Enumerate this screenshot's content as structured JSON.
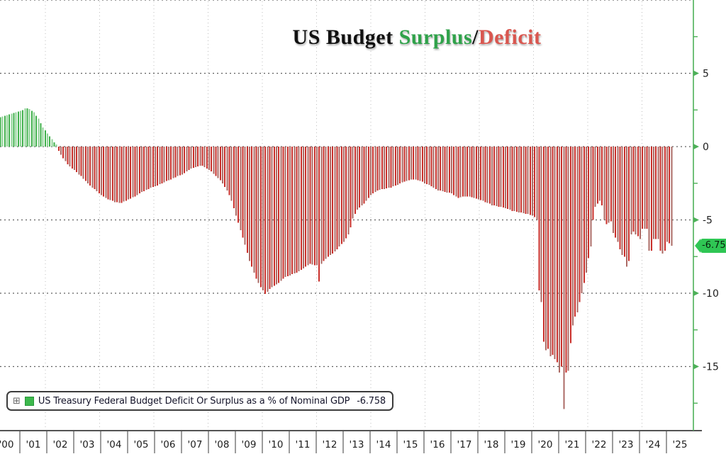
{
  "title": {
    "black": "US Budget ",
    "surplus": "Surplus",
    "slash": "/",
    "deficit": "Deficit"
  },
  "legend": {
    "expand_glyph": "⊞",
    "label": "US Treasury Federal Budget Deficit Or Surplus as a % of Nominal GDP",
    "value": "-6.758"
  },
  "colors": {
    "surplus_bar": "#3fb04a",
    "surplus_bar_alt": "#8ed194",
    "deficit_bar": "#c92f2a",
    "deficit_bar_alt": "#ab6a64",
    "axis_green": "#4db058",
    "value_tag_bg": "#2fc654",
    "grid_h": "#5f5f5f",
    "grid_v": "#bdbdbd",
    "axis_black": "#1a1a1a",
    "tick_label": "#1c1c1c",
    "title_green": "#2fa24a",
    "title_red": "#d9564f"
  },
  "chart_data": {
    "type": "bar",
    "title": "US Budget Surplus/Deficit",
    "series_name": "US Treasury Federal Budget Deficit Or Surplus as a % of Nominal GDP",
    "ylabel": "% of nominal GDP",
    "frequency": "monthly",
    "start": "2000-04",
    "end": "2025-03",
    "last_value": -6.758,
    "last_value_label": "-6.758",
    "ylim": [
      -19.3,
      10
    ],
    "grid": true,
    "legend_position": "bottom-left",
    "y_ticks": [
      5,
      0,
      -5,
      -10,
      -15
    ],
    "y_tick_labels": [
      "5",
      "0",
      "-5",
      "-10",
      "-15"
    ],
    "y_minor_ticks": [
      7.5,
      2.5,
      -2.5,
      -7.5,
      -12.5,
      -17.5
    ],
    "x_tick_labels": [
      "'00",
      "'01",
      "'02",
      "'03",
      "'04",
      "'05",
      "'06",
      "'07",
      "'08",
      "'09",
      "'10",
      "'11",
      "'12",
      "'13",
      "'14",
      "'15",
      "'16",
      "'17",
      "'18",
      "'19",
      "'20",
      "'21",
      "'22",
      "'23",
      "'24",
      "'25"
    ],
    "values": [
      2.0,
      2.05,
      2.1,
      2.15,
      2.2,
      2.25,
      2.3,
      2.35,
      2.4,
      2.45,
      2.5,
      2.6,
      2.62,
      2.55,
      2.45,
      2.35,
      2.1,
      1.9,
      1.6,
      1.3,
      1.1,
      0.9,
      0.7,
      0.5,
      0.3,
      0.15,
      -0.3,
      -0.55,
      -0.8,
      -1.0,
      -1.2,
      -1.35,
      -1.5,
      -1.6,
      -1.75,
      -1.9,
      -2.0,
      -2.2,
      -2.35,
      -2.5,
      -2.65,
      -2.8,
      -2.9,
      -3.05,
      -3.2,
      -3.3,
      -3.4,
      -3.5,
      -3.6,
      -3.65,
      -3.7,
      -3.8,
      -3.8,
      -3.85,
      -3.85,
      -3.75,
      -3.7,
      -3.6,
      -3.55,
      -3.45,
      -3.4,
      -3.3,
      -3.2,
      -3.1,
      -3.05,
      -2.95,
      -2.9,
      -2.8,
      -2.75,
      -2.7,
      -2.65,
      -2.55,
      -2.5,
      -2.45,
      -2.35,
      -2.3,
      -2.25,
      -2.15,
      -2.1,
      -2.0,
      -1.95,
      -1.9,
      -1.8,
      -1.7,
      -1.6,
      -1.5,
      -1.45,
      -1.4,
      -1.35,
      -1.3,
      -1.3,
      -1.4,
      -1.5,
      -1.6,
      -1.7,
      -1.85,
      -2.0,
      -2.15,
      -2.3,
      -2.5,
      -2.75,
      -3.0,
      -3.3,
      -3.7,
      -4.2,
      -4.7,
      -5.2,
      -5.7,
      -6.2,
      -6.7,
      -7.25,
      -7.8,
      -8.2,
      -8.6,
      -9.0,
      -9.3,
      -9.6,
      -9.8,
      -10.05,
      -9.9,
      -9.7,
      -9.6,
      -9.5,
      -9.4,
      -9.3,
      -9.15,
      -9.0,
      -8.9,
      -8.85,
      -8.8,
      -8.7,
      -8.65,
      -8.6,
      -8.5,
      -8.4,
      -8.3,
      -8.2,
      -8.1,
      -8.0,
      -8.05,
      -8.1,
      -8.1,
      -9.2,
      -8.0,
      -7.8,
      -7.65,
      -7.5,
      -7.4,
      -7.3,
      -7.15,
      -7.0,
      -6.8,
      -6.65,
      -6.5,
      -6.25,
      -6.0,
      -5.5,
      -4.9,
      -4.6,
      -4.3,
      -4.15,
      -4.0,
      -3.9,
      -3.7,
      -3.5,
      -3.3,
      -3.2,
      -3.1,
      -3.0,
      -2.95,
      -2.9,
      -2.9,
      -2.85,
      -2.8,
      -2.8,
      -2.7,
      -2.65,
      -2.6,
      -2.5,
      -2.45,
      -2.4,
      -2.35,
      -2.3,
      -2.25,
      -2.25,
      -2.25,
      -2.3,
      -2.35,
      -2.4,
      -2.5,
      -2.55,
      -2.6,
      -2.7,
      -2.8,
      -2.9,
      -3.0,
      -3.0,
      -3.05,
      -3.1,
      -3.15,
      -3.15,
      -3.2,
      -3.3,
      -3.4,
      -3.5,
      -3.45,
      -3.4,
      -3.4,
      -3.4,
      -3.4,
      -3.45,
      -3.5,
      -3.55,
      -3.6,
      -3.65,
      -3.7,
      -3.8,
      -3.85,
      -3.9,
      -4.0,
      -4.0,
      -4.05,
      -4.1,
      -4.1,
      -4.15,
      -4.2,
      -4.25,
      -4.3,
      -4.4,
      -4.4,
      -4.45,
      -4.5,
      -4.5,
      -4.55,
      -4.6,
      -4.6,
      -4.65,
      -4.7,
      -4.8,
      -5.0,
      -9.8,
      -10.6,
      -13.3,
      -13.9,
      -13.8,
      -14.3,
      -14.2,
      -14.5,
      -14.7,
      -15.4,
      -15.0,
      -17.9,
      -15.4,
      -15.3,
      -13.4,
      -12.2,
      -11.6,
      -11.3,
      -10.6,
      -10.0,
      -9.3,
      -8.6,
      -7.6,
      -6.8,
      -5.0,
      -4.1,
      -3.9,
      -3.7,
      -4.0,
      -5.0,
      -5.3,
      -5.2,
      -5.1,
      -5.9,
      -6.2,
      -6.5,
      -7.0,
      -7.4,
      -7.5,
      -8.2,
      -7.8,
      -6.0,
      -5.8,
      -6.0,
      -6.1,
      -6.3,
      -5.6,
      -5.6,
      -5.6,
      -7.1,
      -7.1,
      -6.3,
      -6.3,
      -6.3,
      -7.1,
      -7.3,
      -7.1,
      -6.5,
      -6.6,
      -6.758
    ]
  }
}
